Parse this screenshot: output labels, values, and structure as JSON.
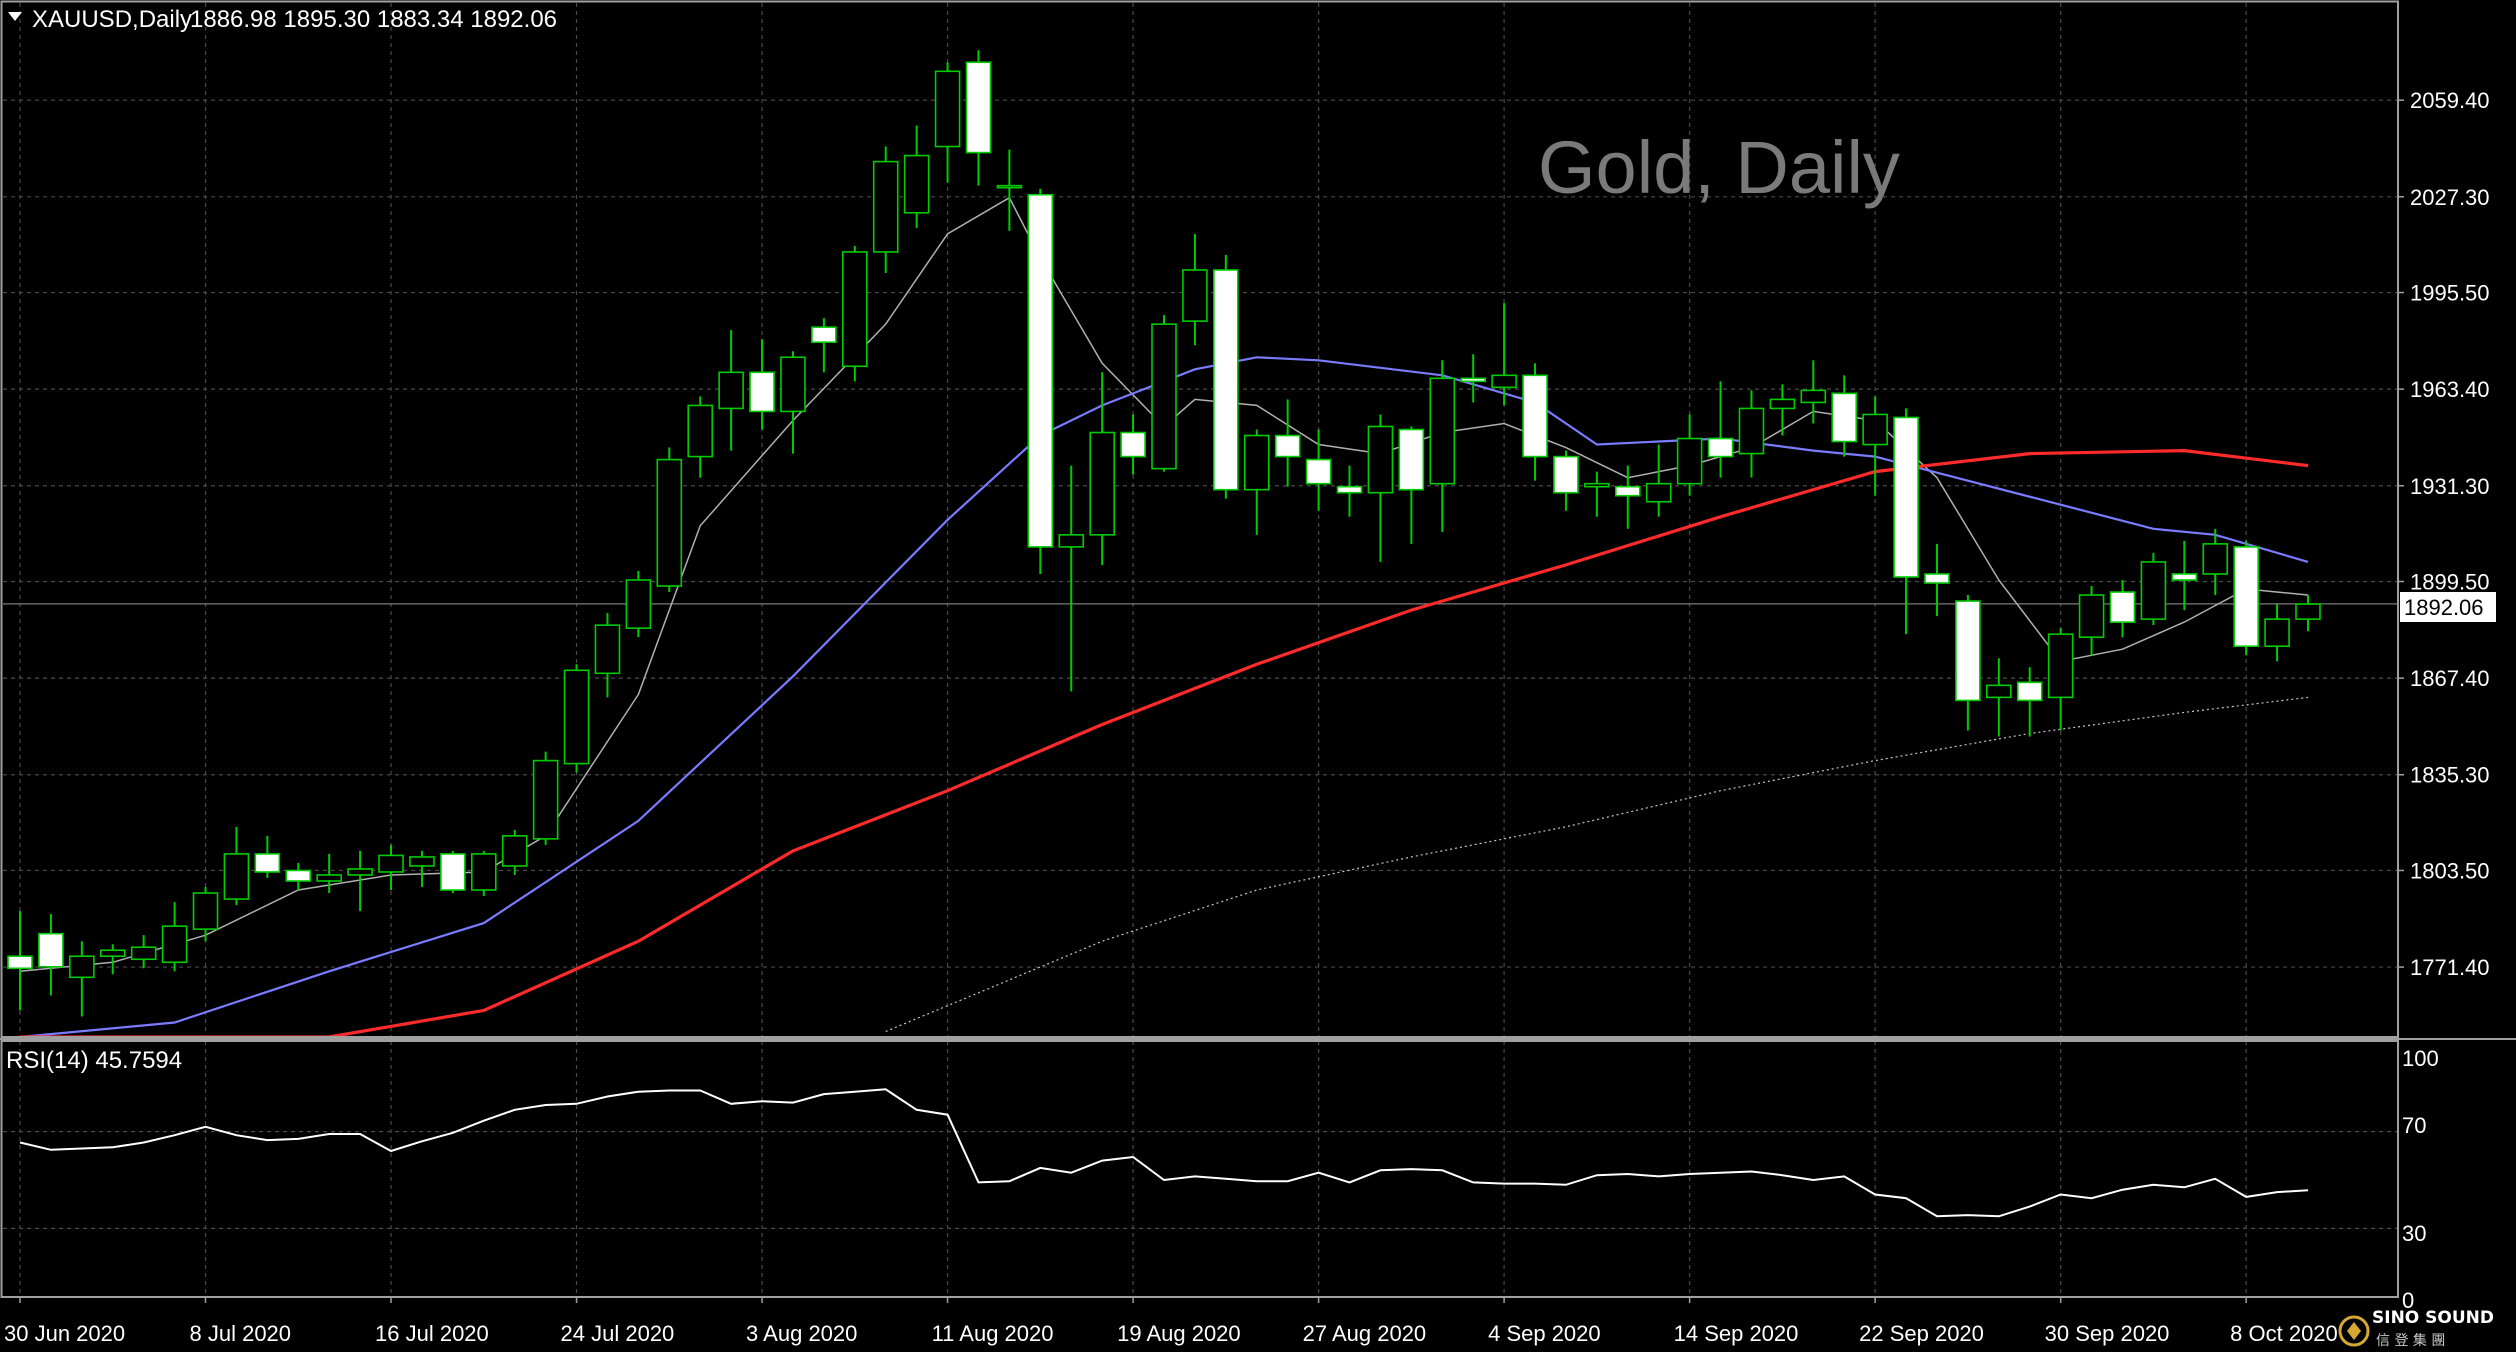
{
  "header": {
    "symbol_label": "XAUUSD,Daily",
    "ohlc_text": "1886.98 1895.30 1883.34 1892.06"
  },
  "watermark": "Gold, Daily",
  "current_price_label": "1892.06",
  "rsi": {
    "label": "RSI(14) 45.7594",
    "levels": [
      "100",
      "70",
      "30",
      "0"
    ]
  },
  "brand": {
    "name": "SINO SOUND",
    "sub": "信 登 集 團"
  },
  "colors": {
    "background": "#000000",
    "grid": "#4a4a4a",
    "bull_candle": "#00cc00",
    "bear_candle": "#ffffff",
    "ma_fast": "#b0b0b0",
    "ma_mid": "#7b7bff",
    "ma_slow": "#ff2a2a",
    "ma_long": "#c8c8c8",
    "rsi_line": "#ffffff"
  },
  "chart_data": {
    "type": "candlestick",
    "symbol": "XAUUSD",
    "timeframe": "Daily",
    "y_tick_labels": [
      "2059.40",
      "2027.30",
      "1995.50",
      "1963.40",
      "1931.30",
      "1899.50",
      "1867.40",
      "1835.30",
      "1803.50",
      "1771.40"
    ],
    "ylim": [
      1752,
      2084
    ],
    "x_tick_labels": [
      "30 Jun 2020",
      "8 Jul 2020",
      "16 Jul 2020",
      "24 Jul 2020",
      "3 Aug 2020",
      "11 Aug 2020",
      "19 Aug 2020",
      "27 Aug 2020",
      "4 Sep 2020",
      "14 Sep 2020",
      "22 Sep 2020",
      "30 Sep 2020",
      "8 Oct 2020"
    ],
    "candles": [
      {
        "o": 1775.0,
        "h": 1790.0,
        "l": 1757.0,
        "c": 1771.0
      },
      {
        "o": 1782.5,
        "h": 1789.0,
        "l": 1762.0,
        "c": 1771.5
      },
      {
        "o": 1768.0,
        "h": 1780.0,
        "l": 1755.0,
        "c": 1775.0
      },
      {
        "o": 1775.0,
        "h": 1779.0,
        "l": 1769.0,
        "c": 1777.0
      },
      {
        "o": 1774.0,
        "h": 1782.0,
        "l": 1771.0,
        "c": 1778.0
      },
      {
        "o": 1773.0,
        "h": 1793.0,
        "l": 1770.0,
        "c": 1785.0
      },
      {
        "o": 1784.0,
        "h": 1798.0,
        "l": 1780.0,
        "c": 1796.0
      },
      {
        "o": 1794.0,
        "h": 1818.0,
        "l": 1792.0,
        "c": 1809.0
      },
      {
        "o": 1809.0,
        "h": 1815.0,
        "l": 1801.0,
        "c": 1803.0
      },
      {
        "o": 1803.5,
        "h": 1806.0,
        "l": 1797.0,
        "c": 1800.0
      },
      {
        "o": 1800.0,
        "h": 1809.0,
        "l": 1796.0,
        "c": 1802.0
      },
      {
        "o": 1802.0,
        "h": 1810.0,
        "l": 1790.0,
        "c": 1804.0
      },
      {
        "o": 1803.0,
        "h": 1812.0,
        "l": 1797.0,
        "c": 1808.5
      },
      {
        "o": 1805.0,
        "h": 1810.0,
        "l": 1798.0,
        "c": 1808.0
      },
      {
        "o": 1809.0,
        "h": 1810.0,
        "l": 1796.0,
        "c": 1797.0
      },
      {
        "o": 1797.0,
        "h": 1810.0,
        "l": 1795.0,
        "c": 1809.0
      },
      {
        "o": 1805.0,
        "h": 1817.0,
        "l": 1802.0,
        "c": 1815.0
      },
      {
        "o": 1814.0,
        "h": 1843.0,
        "l": 1812.0,
        "c": 1840.0
      },
      {
        "o": 1839.0,
        "h": 1872.0,
        "l": 1836.0,
        "c": 1870.0
      },
      {
        "o": 1869.0,
        "h": 1889.0,
        "l": 1861.0,
        "c": 1885.0
      },
      {
        "o": 1884.0,
        "h": 1903.0,
        "l": 1881.0,
        "c": 1900.0
      },
      {
        "o": 1898.0,
        "h": 1944.0,
        "l": 1896.0,
        "c": 1940.0
      },
      {
        "o": 1941.0,
        "h": 1961.0,
        "l": 1934.0,
        "c": 1958.0
      },
      {
        "o": 1957.0,
        "h": 1983.0,
        "l": 1943.0,
        "c": 1969.0
      },
      {
        "o": 1969.0,
        "h": 1980.0,
        "l": 1950.0,
        "c": 1956.0
      },
      {
        "o": 1956.0,
        "h": 1976.0,
        "l": 1942.0,
        "c": 1974.0
      },
      {
        "o": 1984.0,
        "h": 1987.0,
        "l": 1969.0,
        "c": 1979.0
      },
      {
        "o": 1971.0,
        "h": 2011.0,
        "l": 1966.0,
        "c": 2009.0
      },
      {
        "o": 2009.0,
        "h": 2044.0,
        "l": 2002.0,
        "c": 2039.0
      },
      {
        "o": 2022.0,
        "h": 2051.0,
        "l": 2017.0,
        "c": 2041.0
      },
      {
        "o": 2044.0,
        "h": 2072.0,
        "l": 2032.0,
        "c": 2069.0
      },
      {
        "o": 2072.0,
        "h": 2076.0,
        "l": 2031.0,
        "c": 2042.0
      },
      {
        "o": 2031.0,
        "h": 2043.0,
        "l": 2016.0,
        "c": 2031.0
      },
      {
        "o": 2028.0,
        "h": 2030.0,
        "l": 1902.0,
        "c": 1911.0
      },
      {
        "o": 1911.0,
        "h": 1938.0,
        "l": 1863.0,
        "c": 1915.0
      },
      {
        "o": 1915.0,
        "h": 1969.0,
        "l": 1905.0,
        "c": 1949.0
      },
      {
        "o": 1949.0,
        "h": 1955.0,
        "l": 1935.0,
        "c": 1941.0
      },
      {
        "o": 1937.0,
        "h": 1988.0,
        "l": 1936.0,
        "c": 1985.0
      },
      {
        "o": 1986.0,
        "h": 2015.0,
        "l": 1978.0,
        "c": 2003.0
      },
      {
        "o": 2003.0,
        "h": 2008.0,
        "l": 1927.0,
        "c": 1930.0
      },
      {
        "o": 1930.0,
        "h": 1950.0,
        "l": 1915.0,
        "c": 1948.0
      },
      {
        "o": 1948.0,
        "h": 1960.0,
        "l": 1931.0,
        "c": 1941.0
      },
      {
        "o": 1940.0,
        "h": 1950.0,
        "l": 1923.0,
        "c": 1932.0
      },
      {
        "o": 1931.0,
        "h": 1938.0,
        "l": 1921.0,
        "c": 1929.0
      },
      {
        "o": 1929.0,
        "h": 1955.0,
        "l": 1906.0,
        "c": 1951.0
      },
      {
        "o": 1950.0,
        "h": 1951.0,
        "l": 1912.0,
        "c": 1930.0
      },
      {
        "o": 1932.0,
        "h": 1973.0,
        "l": 1916.0,
        "c": 1967.0
      },
      {
        "o": 1967.0,
        "h": 1975.0,
        "l": 1959.0,
        "c": 1966.0
      },
      {
        "o": 1964.0,
        "h": 1992.0,
        "l": 1958.0,
        "c": 1968.0
      },
      {
        "o": 1968.0,
        "h": 1972.0,
        "l": 1933.0,
        "c": 1941.0
      },
      {
        "o": 1941.0,
        "h": 1943.0,
        "l": 1923.0,
        "c": 1929.0
      },
      {
        "o": 1931.0,
        "h": 1936.0,
        "l": 1921.0,
        "c": 1932.0
      },
      {
        "o": 1931.0,
        "h": 1938.0,
        "l": 1917.0,
        "c": 1928.0
      },
      {
        "o": 1926.0,
        "h": 1945.0,
        "l": 1921.0,
        "c": 1932.0
      },
      {
        "o": 1932.0,
        "h": 1955.0,
        "l": 1928.0,
        "c": 1947.0
      },
      {
        "o": 1947.0,
        "h": 1966.0,
        "l": 1934.0,
        "c": 1941.0
      },
      {
        "o": 1942.0,
        "h": 1963.0,
        "l": 1934.0,
        "c": 1957.0
      },
      {
        "o": 1957.0,
        "h": 1965.0,
        "l": 1948.0,
        "c": 1960.0
      },
      {
        "o": 1959.0,
        "h": 1973.0,
        "l": 1952.0,
        "c": 1963.0
      },
      {
        "o": 1962.0,
        "h": 1968.0,
        "l": 1941.0,
        "c": 1946.0
      },
      {
        "o": 1945.0,
        "h": 1961.0,
        "l": 1928.0,
        "c": 1955.0
      },
      {
        "o": 1954.0,
        "h": 1957.0,
        "l": 1882.0,
        "c": 1901.0
      },
      {
        "o": 1902.0,
        "h": 1912.0,
        "l": 1888.0,
        "c": 1899.0
      },
      {
        "o": 1893.0,
        "h": 1895.0,
        "l": 1850.0,
        "c": 1860.0
      },
      {
        "o": 1861.0,
        "h": 1874.0,
        "l": 1848.0,
        "c": 1865.0
      },
      {
        "o": 1866.0,
        "h": 1871.0,
        "l": 1848.0,
        "c": 1860.0
      },
      {
        "o": 1861.0,
        "h": 1884.0,
        "l": 1850.0,
        "c": 1882.0
      },
      {
        "o": 1881.0,
        "h": 1898.0,
        "l": 1875.0,
        "c": 1895.0
      },
      {
        "o": 1896.0,
        "h": 1900.0,
        "l": 1881.0,
        "c": 1886.0
      },
      {
        "o": 1887.0,
        "h": 1909.0,
        "l": 1885.0,
        "c": 1906.0
      },
      {
        "o": 1902.0,
        "h": 1913.0,
        "l": 1890.0,
        "c": 1900.0
      },
      {
        "o": 1902.0,
        "h": 1917.0,
        "l": 1895.0,
        "c": 1912.0
      },
      {
        "o": 1911.0,
        "h": 1913.0,
        "l": 1875.0,
        "c": 1878.0
      },
      {
        "o": 1878.0,
        "h": 1892.0,
        "l": 1873.0,
        "c": 1887.0
      },
      {
        "o": 1887.0,
        "h": 1895.0,
        "l": 1883.0,
        "c": 1892.0
      }
    ],
    "moving_averages": [
      {
        "key": "ma_fast",
        "points": [
          [
            0,
            1770
          ],
          [
            3,
            1773
          ],
          [
            6,
            1782
          ],
          [
            9,
            1797
          ],
          [
            12,
            1802
          ],
          [
            15,
            1803
          ],
          [
            17,
            1815
          ],
          [
            20,
            1862
          ],
          [
            22,
            1918
          ],
          [
            25,
            1953
          ],
          [
            28,
            1985
          ],
          [
            30,
            2015
          ],
          [
            32,
            2027
          ],
          [
            33,
            2007
          ],
          [
            35,
            1972
          ],
          [
            37,
            1951
          ],
          [
            38,
            1960
          ],
          [
            40,
            1958
          ],
          [
            42,
            1945
          ],
          [
            44,
            1942
          ],
          [
            46,
            1949
          ],
          [
            48,
            1952
          ],
          [
            50,
            1944
          ],
          [
            52,
            1934
          ],
          [
            54,
            1938
          ],
          [
            56,
            1944
          ],
          [
            58,
            1956
          ],
          [
            60,
            1953
          ],
          [
            62,
            1934
          ],
          [
            64,
            1900
          ],
          [
            66,
            1873
          ],
          [
            68,
            1877
          ],
          [
            70,
            1886
          ],
          [
            72,
            1897
          ],
          [
            74,
            1895
          ]
        ]
      },
      {
        "key": "ma_mid",
        "points": [
          [
            0,
            1735
          ],
          [
            5,
            1753
          ],
          [
            10,
            1770
          ],
          [
            15,
            1786
          ],
          [
            20,
            1820
          ],
          [
            25,
            1868
          ],
          [
            30,
            1920
          ],
          [
            33,
            1948
          ],
          [
            35,
            1958
          ],
          [
            38,
            1970
          ],
          [
            40,
            1974
          ],
          [
            42,
            1973
          ],
          [
            46,
            1968
          ],
          [
            49,
            1959
          ],
          [
            51,
            1945
          ],
          [
            55,
            1947
          ],
          [
            58,
            1943
          ],
          [
            60,
            1941
          ],
          [
            63,
            1933
          ],
          [
            66,
            1925
          ],
          [
            69,
            1917
          ],
          [
            71,
            1915
          ],
          [
            74,
            1906
          ]
        ]
      },
      {
        "key": "ma_slow",
        "points": [
          [
            0,
            1700
          ],
          [
            5,
            1720
          ],
          [
            10,
            1740
          ],
          [
            15,
            1757
          ],
          [
            20,
            1780
          ],
          [
            25,
            1810
          ],
          [
            30,
            1830
          ],
          [
            35,
            1852
          ],
          [
            40,
            1872
          ],
          [
            45,
            1890
          ],
          [
            50,
            1905
          ],
          [
            55,
            1921
          ],
          [
            60,
            1936
          ],
          [
            65,
            1942
          ],
          [
            70,
            1943
          ],
          [
            74,
            1938
          ]
        ]
      },
      {
        "key": "ma_long",
        "points": [
          [
            28,
            1750
          ],
          [
            35,
            1780
          ],
          [
            40,
            1797
          ],
          [
            45,
            1808
          ],
          [
            50,
            1818
          ],
          [
            55,
            1830
          ],
          [
            60,
            1840
          ],
          [
            65,
            1849
          ],
          [
            70,
            1856
          ],
          [
            74,
            1861
          ]
        ]
      }
    ],
    "rsi": {
      "ylim": [
        0,
        100
      ],
      "levels": [
        70,
        30
      ],
      "values": [
        65.5,
        62.5,
        63.0,
        63.5,
        65.5,
        68.5,
        72.0,
        68.5,
        66.5,
        67.0,
        69.0,
        69.0,
        62.0,
        66.0,
        69.5,
        74.5,
        79.0,
        81.0,
        81.5,
        84.5,
        86.5,
        87.0,
        87.0,
        81.5,
        82.5,
        82.0,
        85.5,
        86.5,
        87.5,
        79.0,
        77.0,
        49.0,
        49.5,
        55.0,
        53.0,
        58.0,
        59.5,
        50.0,
        51.5,
        50.5,
        49.5,
        49.5,
        53.0,
        49.0,
        54.0,
        54.5,
        54.0,
        49.0,
        48.5,
        48.5,
        48.0,
        52.0,
        52.5,
        51.5,
        52.5,
        53.0,
        53.5,
        52.0,
        50.0,
        51.5,
        44.0,
        42.5,
        35.0,
        35.5,
        35.0,
        39.0,
        44.0,
        42.5,
        46.0,
        48.0,
        47.0,
        50.5,
        43.0,
        45.0,
        45.76
      ]
    }
  }
}
